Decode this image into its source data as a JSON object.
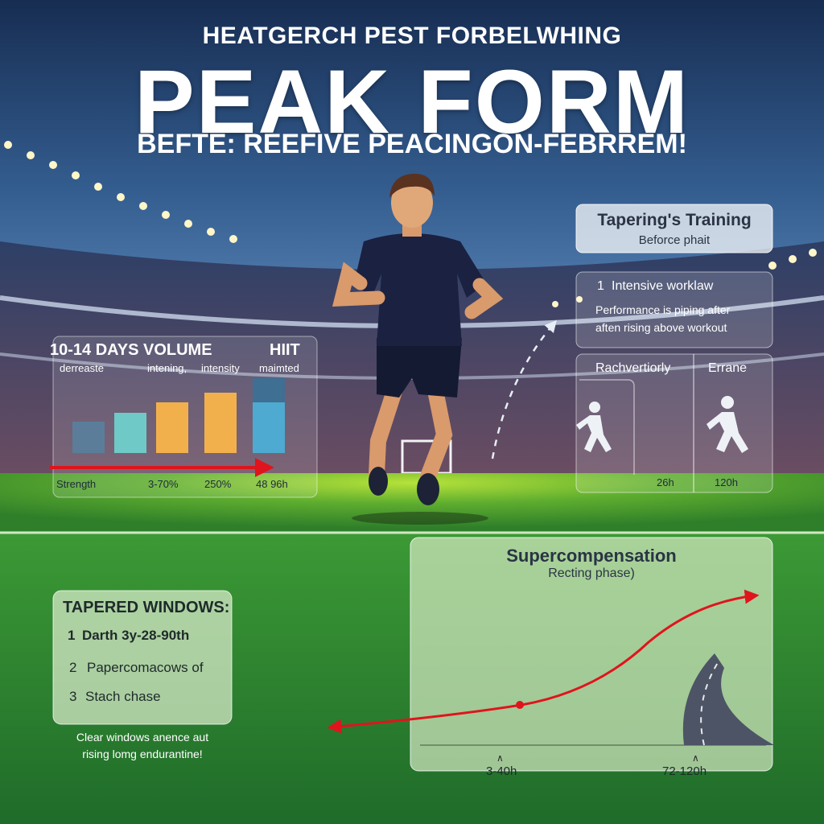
{
  "header": {
    "kicker": "HEATGERCH PEST FORBELWHING",
    "title": "PEAK FORM",
    "subtitle": "BEFTE: REEFIVE PEACINGON-FEBRREM!"
  },
  "volume_panel": {
    "heading": "10-14 DAYS VOLUME",
    "heading_right": "HIIT",
    "sub_labels": [
      "derreaste",
      "intening,",
      "intensity",
      "maimted"
    ],
    "bottom_labels": [
      "Strength",
      "3-70%",
      "250%",
      "48 96h"
    ]
  },
  "tapering_panel": {
    "title": "Tapering's Training",
    "subtitle": "Beforce phait",
    "item_number": "1",
    "item_text": "Intensive worklaw",
    "description_line1": "Performance is piping after",
    "description_line2": "aften rising above workout"
  },
  "recovery_panel": {
    "left_label": "Rachvertiorly",
    "right_label": "Errane",
    "left_value": "26h",
    "right_value": "120h"
  },
  "windows_panel": {
    "title": "TAPERED WINDOWS:",
    "items": [
      {
        "number": "1",
        "text": "Darth 3y-28-90th"
      },
      {
        "number": "2",
        "text": "Papercomacows of"
      },
      {
        "number": "3",
        "text": "Stach chase"
      }
    ],
    "footer_line1": "Clear windows anence aut",
    "footer_line2": "rising lomg endurantine!"
  },
  "supercomp_panel": {
    "title": "Supercompensation",
    "subtitle": "Recting phase)",
    "axis_left": "3-40h",
    "axis_right": "72-120h"
  },
  "colors": {
    "sky_top": "#1b3560",
    "sky_bottom": "#4a78ad",
    "pitch_green": "#3f9a2e",
    "accent_red": "#e0141c",
    "bar_slate": "#5b7d9a",
    "bar_teal": "#6fc9c6",
    "bar_orange": "#f2b04d",
    "bar_blue": "#4eaad0"
  }
}
